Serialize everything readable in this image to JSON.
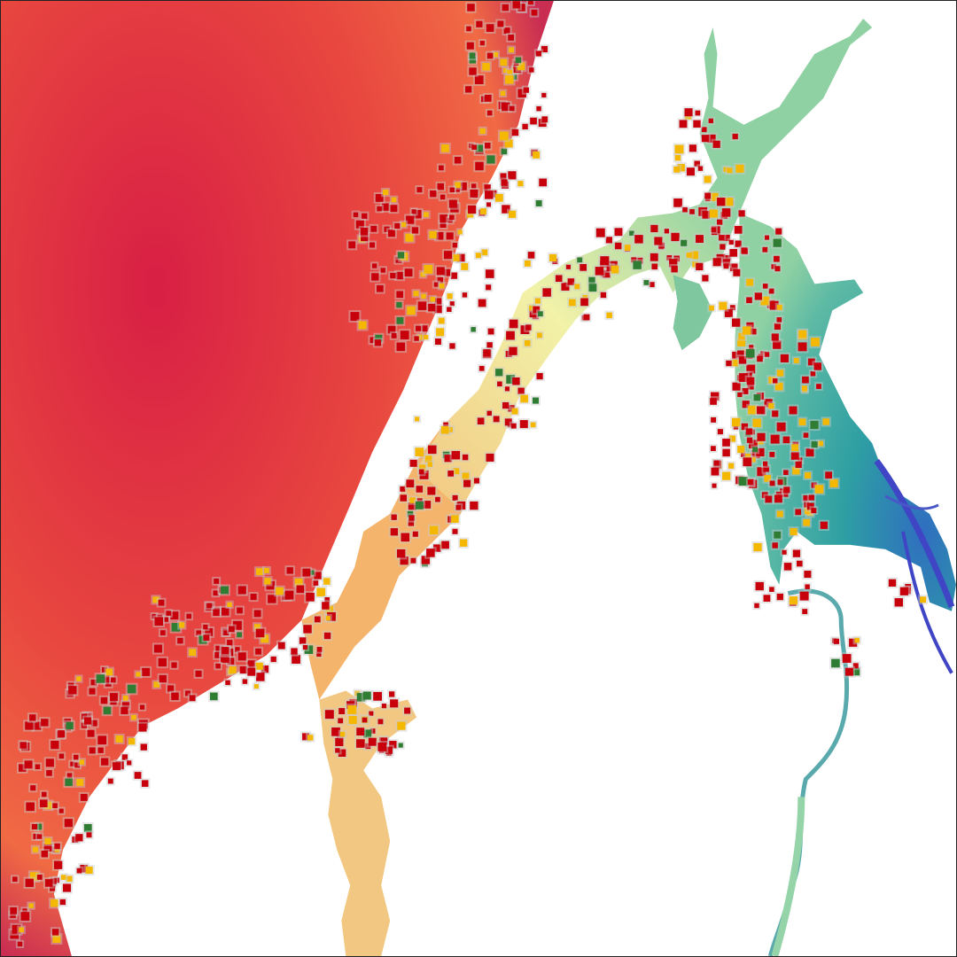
{
  "map": {
    "background_color": "#ffffff",
    "gradient_stops": [
      "#b51d4c",
      "#d81f45",
      "#f06a44",
      "#f7b56a",
      "#f2f2a8",
      "#8fd1a3",
      "#2e9fa3",
      "#2f6ec0",
      "#3f45c4"
    ],
    "legend": [],
    "labels": [],
    "marker_colors": {
      "building": "#c8000b",
      "highlight": "#f5b800",
      "vegetation": "#2e7d32",
      "halo": "#c9c9c9"
    }
  }
}
